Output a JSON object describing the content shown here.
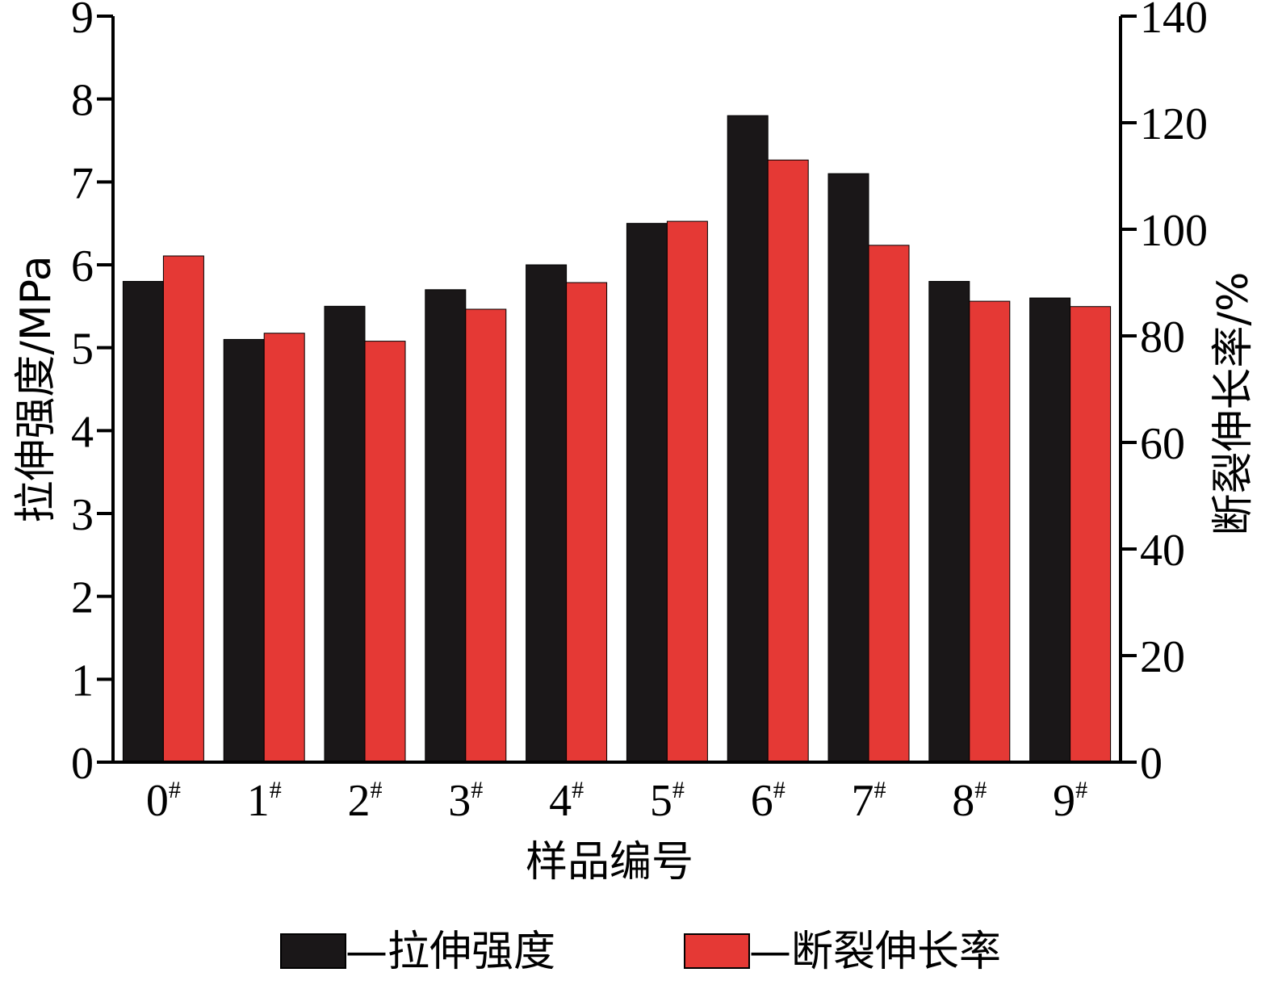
{
  "chart_data": {
    "type": "bar",
    "title": "",
    "xlabel": "样品编号",
    "ylabel": "拉伸强度/MPa",
    "y2label": "断裂伸长率/%",
    "categories": [
      "0",
      "1",
      "2",
      "3",
      "4",
      "5",
      "6",
      "7",
      "8",
      "9"
    ],
    "category_suffix": "#",
    "ylim": [
      0,
      9
    ],
    "yticks": [
      0,
      1,
      2,
      3,
      4,
      5,
      6,
      7,
      8,
      9
    ],
    "y2lim": [
      0,
      140
    ],
    "y2ticks": [
      0,
      20,
      40,
      60,
      80,
      100,
      120,
      140
    ],
    "series": [
      {
        "name": "拉伸强度",
        "axis": "left",
        "color": "#1a1718",
        "values": [
          5.8,
          5.1,
          5.5,
          5.7,
          6.0,
          6.5,
          7.8,
          7.1,
          5.8,
          5.6
        ]
      },
      {
        "name": "断裂伸长率",
        "axis": "right",
        "color": "#e53935",
        "values": [
          95,
          80.5,
          79,
          85,
          90,
          101.5,
          113,
          97,
          86.5,
          85.5
        ]
      }
    ],
    "legend": {
      "position": "bottom",
      "items": [
        {
          "label": "—拉伸强度"
        },
        {
          "label": "—断裂伸长率"
        }
      ]
    },
    "grid": false
  }
}
